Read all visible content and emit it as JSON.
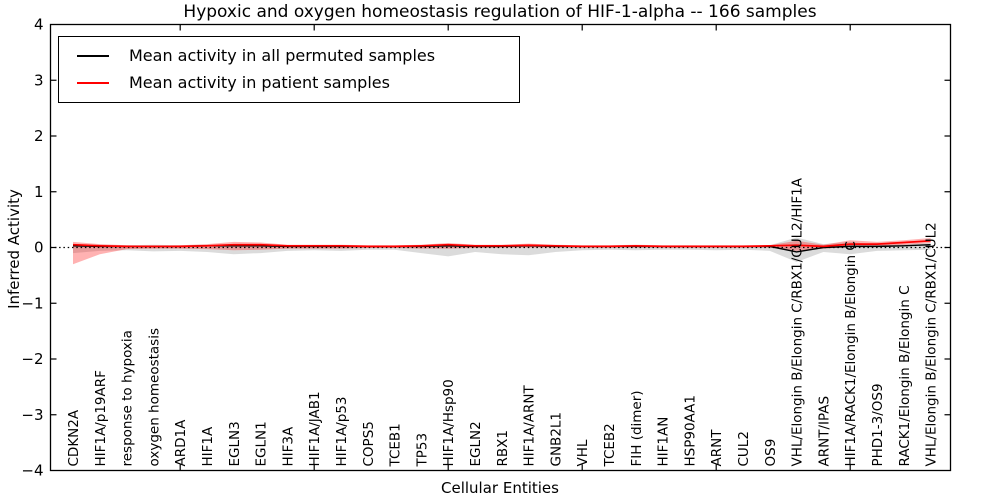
{
  "figure": {
    "kind": "matplotlib-style line chart with confidence bands"
  },
  "chart_data": {
    "type": "line",
    "title": "Hypoxic and oxygen homeostasis regulation of HIF-1-alpha -- 166 samples",
    "xlabel": "Cellular Entities",
    "ylabel": "Inferred Activity",
    "ylim": [
      -4,
      4
    ],
    "grid": false,
    "y_ticks": [
      {
        "value": 4,
        "label": "4"
      },
      {
        "value": 3,
        "label": "3"
      },
      {
        "value": 2,
        "label": "2"
      },
      {
        "value": 1,
        "label": "1"
      },
      {
        "value": 0,
        "label": "0"
      },
      {
        "value": -1,
        "label": "−1"
      },
      {
        "value": -2,
        "label": "−2"
      },
      {
        "value": -3,
        "label": "−3"
      },
      {
        "value": -4,
        "label": "−4"
      }
    ],
    "x_minor_tick_indices": [
      4,
      9,
      14,
      19,
      24,
      29
    ],
    "categories": [
      "CDKN2A",
      "HIF1A/p19ARF",
      "response to hypoxia",
      "oxygen homeostasis",
      "ARD1A",
      "HIF1A",
      "EGLN3",
      "EGLN1",
      "HIF3A",
      "HIF1A/JAB1",
      "HIF1A/p53",
      "COPS5",
      "TCEB1",
      "TP53",
      "HIF1A/Hsp90",
      "EGLN2",
      "RBX1",
      "HIF1A/ARNT",
      "GNB2L1",
      "VHL",
      "TCEB2",
      "FIH (dimer)",
      "HIF1AN",
      "HSP90AA1",
      "ARNT",
      "CUL2",
      "OS9",
      "VHL/Elongin B/Elongin C/RBX1/CUL2/HIF1A",
      "ARNT/IPAS",
      "HIF1A/RACK1/Elongin B/Elongin C",
      "PHD1-3/OS9",
      "RACK1/Elongin B/Elongin C",
      "VHL/Elongin B/Elongin C/RBX1/CUL2"
    ],
    "zero_line": {
      "y": 0,
      "style": "dotted",
      "color": "#000000"
    },
    "series": [
      {
        "name": "Mean activity in all permuted samples",
        "color": "#000000",
        "band_color": "rgba(0,0,0,0.14)",
        "values": [
          0.03,
          0.02,
          0.02,
          0.02,
          0.02,
          0.03,
          0.03,
          0.03,
          0.02,
          0.02,
          0.02,
          0.02,
          0.02,
          0.02,
          0.03,
          0.02,
          0.02,
          0.03,
          0.02,
          0.02,
          0.02,
          0.02,
          0.02,
          0.02,
          0.02,
          0.02,
          0.02,
          -0.08,
          0.0,
          0.02,
          0.02,
          0.03,
          0.05
        ],
        "band_upper": [
          0.06,
          0.05,
          0.04,
          0.05,
          0.04,
          0.05,
          0.06,
          0.06,
          0.04,
          0.04,
          0.04,
          0.03,
          0.03,
          0.04,
          0.05,
          0.04,
          0.04,
          0.05,
          0.04,
          0.03,
          0.03,
          0.03,
          0.03,
          0.03,
          0.03,
          0.03,
          0.04,
          0.18,
          0.06,
          0.1,
          0.05,
          0.06,
          0.08
        ],
        "band_lower": [
          -0.1,
          -0.06,
          -0.05,
          -0.07,
          -0.06,
          -0.08,
          -0.12,
          -0.1,
          -0.06,
          -0.05,
          -0.06,
          -0.04,
          -0.04,
          -0.1,
          -0.16,
          -0.08,
          -0.12,
          -0.14,
          -0.08,
          -0.05,
          -0.04,
          -0.05,
          -0.04,
          -0.04,
          -0.05,
          -0.04,
          -0.06,
          -0.26,
          -0.08,
          -0.12,
          -0.06,
          -0.05,
          -0.04
        ]
      },
      {
        "name": "Mean activity in patient samples",
        "color": "#ff0000",
        "band_color": "rgba(255,0,0,0.30)",
        "values": [
          0.05,
          0.03,
          0.02,
          0.02,
          0.02,
          0.03,
          0.05,
          0.05,
          0.03,
          0.03,
          0.03,
          0.02,
          0.02,
          0.03,
          0.05,
          0.03,
          0.03,
          0.04,
          0.03,
          0.02,
          0.02,
          0.03,
          0.02,
          0.02,
          0.02,
          0.02,
          0.03,
          0.04,
          0.02,
          0.06,
          0.06,
          0.09,
          0.12
        ],
        "band_upper": [
          0.1,
          0.06,
          0.04,
          0.03,
          0.04,
          0.06,
          0.1,
          0.09,
          0.05,
          0.05,
          0.05,
          0.04,
          0.04,
          0.05,
          0.08,
          0.05,
          0.05,
          0.07,
          0.05,
          0.04,
          0.04,
          0.05,
          0.04,
          0.04,
          0.04,
          0.04,
          0.04,
          0.12,
          0.05,
          0.13,
          0.1,
          0.13,
          0.17
        ],
        "band_lower": [
          -0.3,
          -0.12,
          -0.03,
          -0.02,
          -0.02,
          -0.03,
          -0.05,
          -0.04,
          -0.02,
          -0.02,
          -0.02,
          -0.01,
          -0.01,
          -0.02,
          -0.02,
          -0.01,
          0.0,
          0.0,
          0.0,
          0.0,
          0.0,
          0.0,
          0.0,
          0.0,
          0.0,
          0.0,
          0.0,
          -0.06,
          -0.02,
          0.01,
          0.03,
          0.05,
          0.08
        ]
      }
    ],
    "legend": {
      "position": "upper left",
      "entries": [
        {
          "label": "Mean activity in all permuted samples",
          "color": "#000000"
        },
        {
          "label": "Mean activity in patient samples",
          "color": "#ff0000"
        }
      ]
    }
  }
}
